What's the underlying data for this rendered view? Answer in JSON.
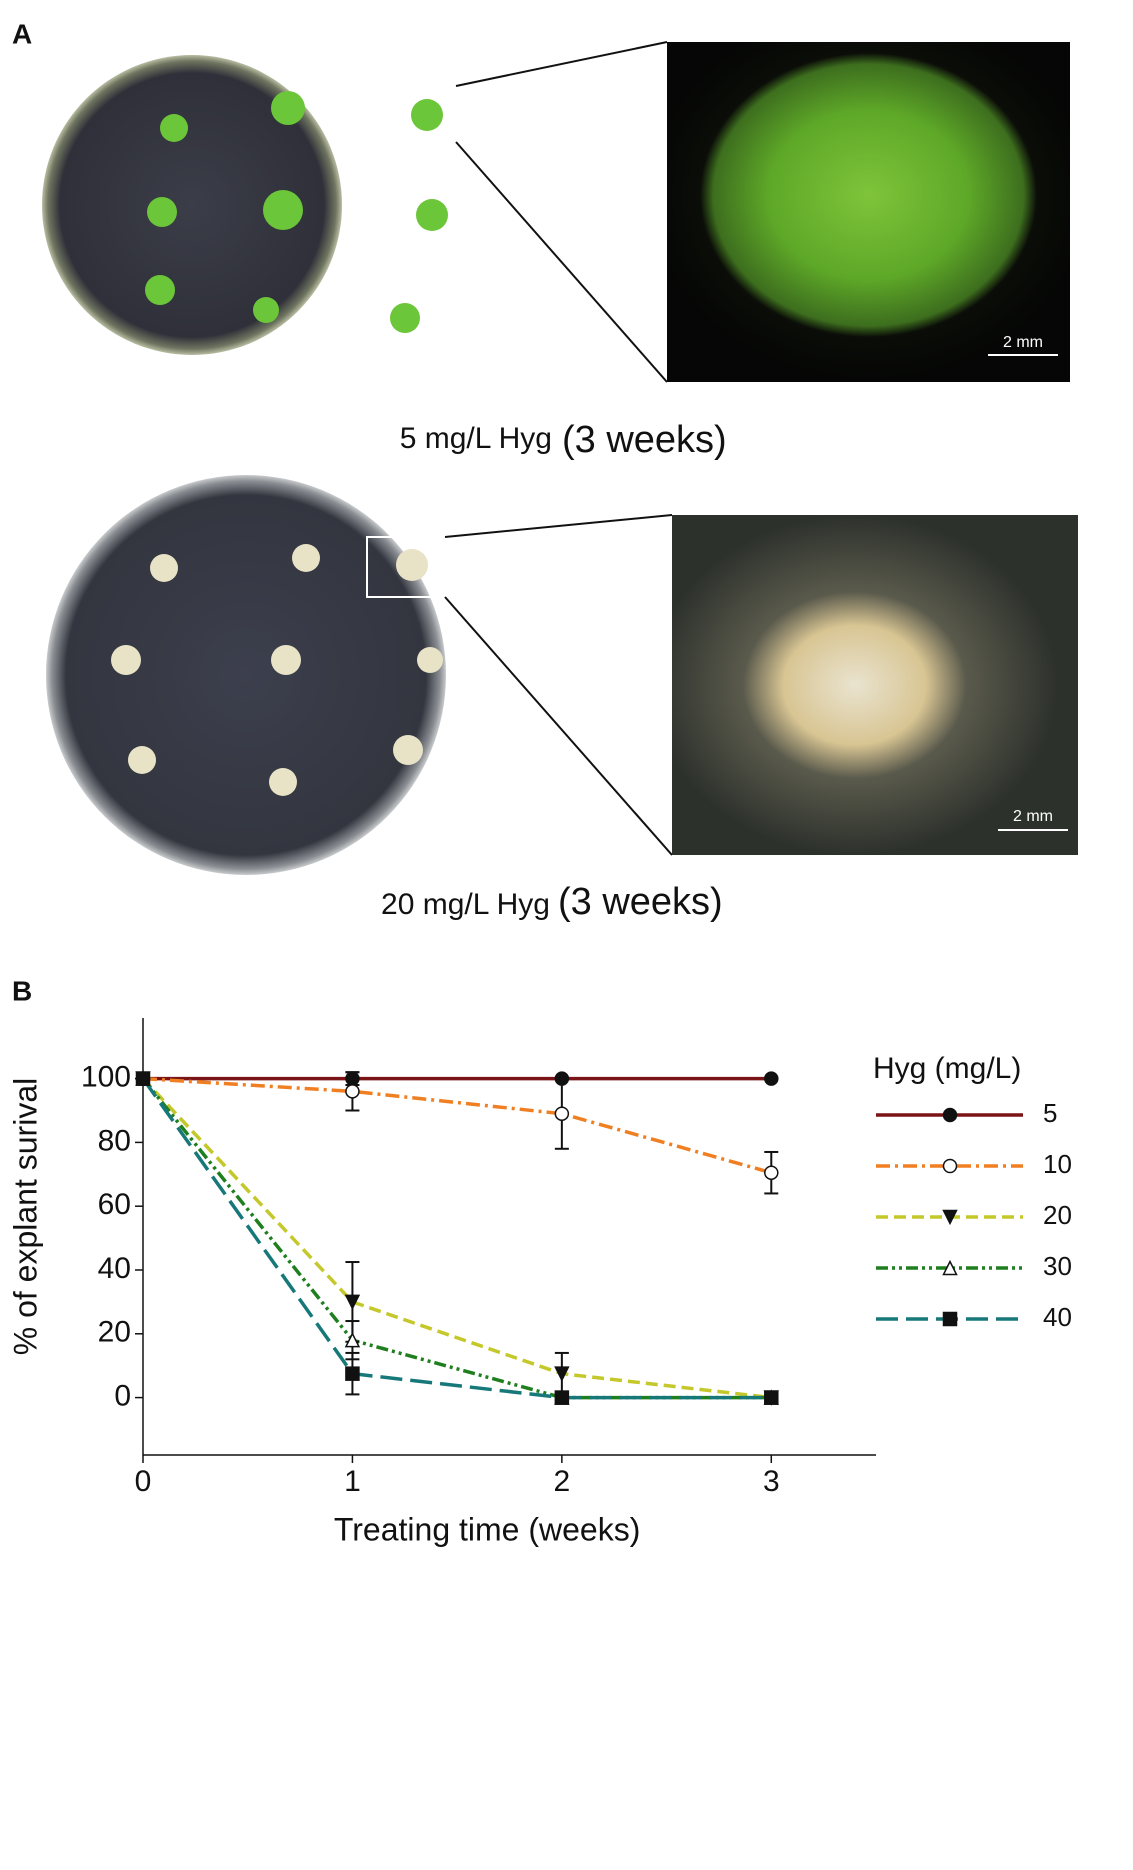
{
  "panel_a": {
    "label": "A",
    "top": {
      "caption": "5 mg/L Hyg",
      "duration": "(3 weeks)",
      "scale_bar": "2 mm"
    },
    "bottom": {
      "caption": "20 mg/L Hyg",
      "duration": "(3 weeks)",
      "scale_bar": "2 mm"
    }
  },
  "panel_b": {
    "label": "B"
  },
  "chart_data": {
    "type": "line",
    "xlabel": "Treating time (weeks)",
    "ylabel": "% of explant surival",
    "legend_title": "Hyg (mg/L)",
    "legend": "right",
    "x": [
      0,
      1,
      2,
      3
    ],
    "xlim": [
      0,
      3.5
    ],
    "xticks": [
      0,
      1,
      2,
      3
    ],
    "ylim": [
      -18,
      119
    ],
    "yticks": [
      0,
      20,
      40,
      60,
      80,
      100
    ],
    "series": [
      {
        "name": "5",
        "color": "#7b1416",
        "line": "solid",
        "marker": "circle",
        "filled": true,
        "values": [
          100,
          100,
          100,
          100
        ],
        "errors": [
          null,
          2,
          null,
          null
        ]
      },
      {
        "name": "10",
        "color": "#f07f22",
        "line": "dashdot",
        "marker": "circle",
        "filled": false,
        "values": [
          100,
          96,
          89,
          70.5
        ],
        "errors": [
          null,
          6,
          11,
          6.5
        ]
      },
      {
        "name": "20",
        "color": "#c4c82a",
        "line": "dashed",
        "marker": "triangle-down",
        "filled": true,
        "values": [
          100,
          30,
          7.5,
          0
        ],
        "errors": [
          null,
          12.5,
          6.5,
          null
        ]
      },
      {
        "name": "30",
        "color": "#1f7f1f",
        "line": "dashdotdot",
        "marker": "triangle-up",
        "filled": false,
        "values": [
          100,
          18,
          0,
          0
        ],
        "errors": [
          null,
          6,
          null,
          null
        ]
      },
      {
        "name": "40",
        "color": "#17787a",
        "line": "longdash",
        "marker": "square",
        "filled": true,
        "values": [
          100,
          7.5,
          0,
          0
        ],
        "errors": [
          null,
          6.5,
          null,
          null
        ]
      }
    ]
  }
}
